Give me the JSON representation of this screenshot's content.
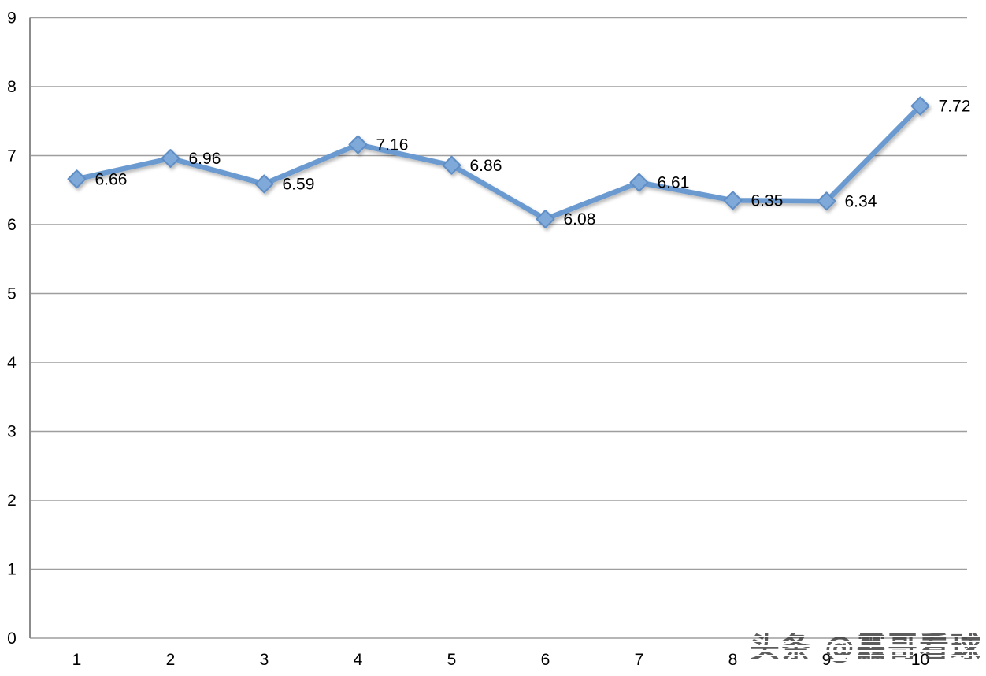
{
  "watermark": {
    "text": "头条 @靐哥看球",
    "color": "#3a3a3a"
  },
  "chart_data": {
    "type": "line",
    "title": "",
    "xlabel": "",
    "ylabel": "",
    "categories": [
      "1",
      "2",
      "3",
      "4",
      "5",
      "6",
      "7",
      "8",
      "9",
      "10"
    ],
    "values": [
      6.66,
      6.96,
      6.59,
      7.16,
      6.86,
      6.08,
      6.61,
      6.35,
      6.34,
      7.72
    ],
    "data_labels": [
      "6.66",
      "6.96",
      "6.59",
      "7.16",
      "6.86",
      "6.08",
      "6.61",
      "6.35",
      "6.34",
      "7.72"
    ],
    "yticks": [
      "0",
      "1",
      "2",
      "3",
      "4",
      "5",
      "6",
      "7",
      "8",
      "9"
    ],
    "ylim": [
      0,
      9
    ],
    "ytick_step": 1,
    "grid": true,
    "legend": "none",
    "marker": "diamond",
    "style": {
      "line_color": "#6B9AD0",
      "marker_fill": "#7FA9D9",
      "marker_stroke": "#5E8EC6",
      "gridline_color": "#9E9E9E",
      "axis_color": "#8C8C8C",
      "tick_label_color": "#000000",
      "data_label_color": "#000000"
    }
  }
}
